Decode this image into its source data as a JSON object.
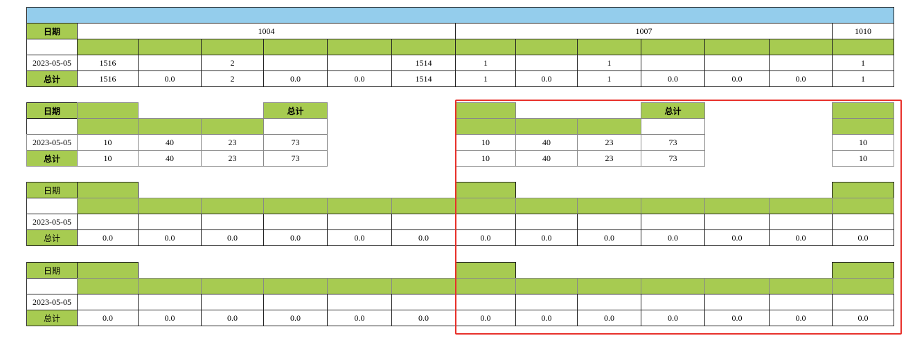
{
  "table1": {
    "date_label": "日期",
    "groups": [
      "1004",
      "1007",
      "1010"
    ],
    "rows": [
      {
        "label": "2023-05-05",
        "values": [
          "1516",
          null,
          "2",
          null,
          null,
          "1514",
          "1",
          null,
          "1",
          null,
          null,
          null,
          "1"
        ]
      },
      {
        "label": "总计",
        "values": [
          "1516",
          "0.0",
          "2",
          "0.0",
          "0.0",
          "1514",
          "1",
          "0.0",
          "1",
          "0.0",
          "0.0",
          "0.0",
          "1"
        ]
      }
    ]
  },
  "table2": {
    "header": [
      "日期",
      "总计",
      "总计"
    ],
    "rows": [
      {
        "label": "2023-05-05",
        "values": [
          "10",
          "40",
          "23",
          "73",
          "10",
          "40",
          "23",
          "73",
          "10"
        ]
      },
      {
        "label": "总计",
        "values": [
          "10",
          "40",
          "23",
          "73",
          "10",
          "40",
          "23",
          "73",
          "10"
        ]
      }
    ]
  },
  "table3": {
    "header": "日期",
    "rows": [
      {
        "label": "2023-05-05"
      },
      {
        "label": "总计",
        "values": [
          "0.0",
          "0.0",
          "0.0",
          "0.0",
          "0.0",
          "0.0",
          "0.0",
          "0.0",
          "0.0",
          "0.0",
          "0.0",
          "0.0",
          "0.0"
        ]
      }
    ]
  },
  "table4": {
    "header": "日期",
    "rows": [
      {
        "label": "2023-05-05"
      },
      {
        "label": "总计",
        "values": [
          "0.0",
          "0.0",
          "0.0",
          "0.0",
          "0.0",
          "0.0",
          "0.0",
          "0.0",
          "0.0",
          "0.0",
          "0.0",
          "0.0",
          "0.0"
        ]
      }
    ]
  }
}
